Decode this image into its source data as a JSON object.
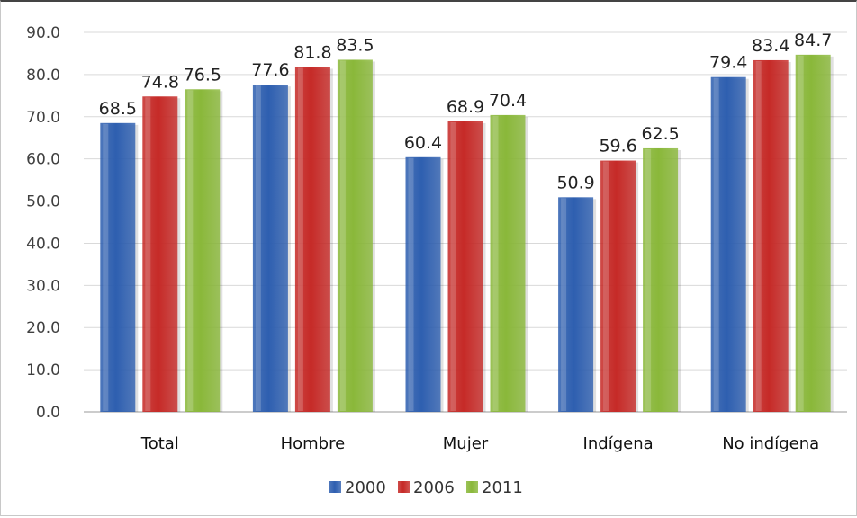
{
  "chart_data": {
    "type": "bar",
    "categories": [
      "Total",
      "Hombre",
      "Mujer",
      "Indígena",
      "No indígena"
    ],
    "series": [
      {
        "name": "2000",
        "color": "#2e5fb0",
        "values": [
          68.5,
          77.6,
          60.4,
          50.9,
          79.4
        ]
      },
      {
        "name": "2006",
        "color": "#c62a27",
        "values": [
          74.8,
          81.8,
          68.9,
          59.6,
          83.4
        ]
      },
      {
        "name": "2011",
        "color": "#8ab83a",
        "values": [
          76.5,
          83.5,
          70.4,
          62.5,
          84.7
        ]
      }
    ],
    "y_ticks": [
      "0.0",
      "10.0",
      "20.0",
      "30.0",
      "40.0",
      "50.0",
      "60.0",
      "70.0",
      "80.0",
      "90.0"
    ],
    "ylim": [
      0,
      90
    ],
    "grid": true,
    "legend_position": "bottom",
    "data_labels": true
  }
}
